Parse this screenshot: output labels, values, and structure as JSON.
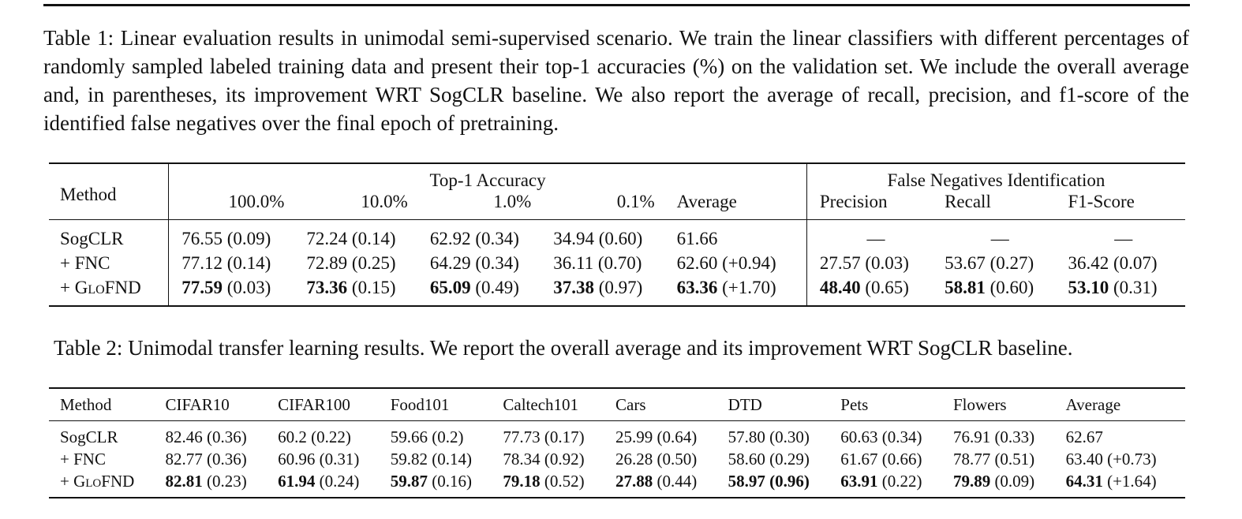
{
  "table1": {
    "caption": "Table 1: Linear evaluation results in unimodal semi-supervised scenario. We train the linear classifiers with different percentages of randomly sampled labeled training data and present their top-1 accuracies (%) on the validation set. We include the overall average and, in parentheses, its improvement WRT SogCLR baseline. We also report the average of recall, precision, and f1-score of the identified false negatives over the final epoch of pretraining.",
    "method_header": "Method",
    "group_top1": "Top-1 Accuracy",
    "group_fn": "False Negatives Identification",
    "columns": [
      "100.0%",
      "10.0%",
      "1.0%",
      "0.1%",
      "Average",
      "Precision",
      "Recall",
      "F1-Score"
    ],
    "rows": [
      {
        "method": "SogCLR",
        "cells": [
          {
            "bold": "",
            "rest": "76.55 (0.09)"
          },
          {
            "bold": "",
            "rest": "72.24 (0.14)"
          },
          {
            "bold": "",
            "rest": "62.92 (0.34)"
          },
          {
            "bold": "",
            "rest": "34.94 (0.60)"
          },
          {
            "bold": "",
            "rest": "61.66"
          },
          {
            "bold": "",
            "rest": "—"
          },
          {
            "bold": "",
            "rest": "—"
          },
          {
            "bold": "",
            "rest": "—"
          }
        ]
      },
      {
        "method": "+ FNC",
        "cells": [
          {
            "bold": "",
            "rest": "77.12 (0.14)"
          },
          {
            "bold": "",
            "rest": "72.89 (0.25)"
          },
          {
            "bold": "",
            "rest": "64.29 (0.34)"
          },
          {
            "bold": "",
            "rest": "36.11 (0.70)"
          },
          {
            "bold": "",
            "rest": "62.60 (+0.94)"
          },
          {
            "bold": "",
            "rest": "27.57 (0.03)"
          },
          {
            "bold": "",
            "rest": "53.67 (0.27)"
          },
          {
            "bold": "",
            "rest": "36.42 (0.07)"
          }
        ]
      },
      {
        "method": "+ GLOFND",
        "cells": [
          {
            "bold": "77.59",
            "rest": " (0.03)"
          },
          {
            "bold": "73.36",
            "rest": " (0.15)"
          },
          {
            "bold": "65.09",
            "rest": " (0.49)"
          },
          {
            "bold": "37.38",
            "rest": " (0.97)"
          },
          {
            "bold": "63.36",
            "rest": " (+1.70)"
          },
          {
            "bold": "48.40",
            "rest": " (0.65)"
          },
          {
            "bold": "58.81",
            "rest": " (0.60)"
          },
          {
            "bold": "53.10",
            "rest": " (0.31)"
          }
        ]
      }
    ]
  },
  "table2": {
    "caption": "Table 2: Unimodal transfer learning results. We report the overall average and its improvement WRT SogCLR baseline.",
    "columns": [
      "Method",
      "CIFAR10",
      "CIFAR100",
      "Food101",
      "Caltech101",
      "Cars",
      "DTD",
      "Pets",
      "Flowers",
      "Average"
    ],
    "rows": [
      {
        "method": "SogCLR",
        "cells": [
          {
            "bold": "",
            "rest": "82.46 (0.36)"
          },
          {
            "bold": "",
            "rest": "60.2 (0.22)"
          },
          {
            "bold": "",
            "rest": "59.66 (0.2)"
          },
          {
            "bold": "",
            "rest": "77.73 (0.17)"
          },
          {
            "bold": "",
            "rest": "25.99 (0.64)"
          },
          {
            "bold": "",
            "rest": "57.80 (0.30)"
          },
          {
            "bold": "",
            "rest": "60.63 (0.34)"
          },
          {
            "bold": "",
            "rest": "76.91 (0.33)"
          },
          {
            "bold": "",
            "rest": "62.67"
          }
        ]
      },
      {
        "method": "+ FNC",
        "cells": [
          {
            "bold": "",
            "rest": "82.77 (0.36)"
          },
          {
            "bold": "",
            "rest": "60.96 (0.31)"
          },
          {
            "bold": "",
            "rest": "59.82 (0.14)"
          },
          {
            "bold": "",
            "rest": "78.34 (0.92)"
          },
          {
            "bold": "",
            "rest": "26.28 (0.50)"
          },
          {
            "bold": "",
            "rest": "58.60 (0.29)"
          },
          {
            "bold": "",
            "rest": "61.67 (0.66)"
          },
          {
            "bold": "",
            "rest": "78.77 (0.51)"
          },
          {
            "bold": "",
            "rest": "63.40 (+0.73)"
          }
        ]
      },
      {
        "method": "+ GLOFND",
        "cells": [
          {
            "bold": "82.81",
            "rest": " (0.23)"
          },
          {
            "bold": "61.94",
            "rest": " (0.24)"
          },
          {
            "bold": "59.87",
            "rest": " (0.16)"
          },
          {
            "bold": "79.18",
            "rest": " (0.52)"
          },
          {
            "bold": "27.88",
            "rest": " (0.44)"
          },
          {
            "bold": "58.97 (0.96)",
            "rest": ""
          },
          {
            "bold": "63.91",
            "rest": " (0.22)"
          },
          {
            "bold": "79.89",
            "rest": " (0.09)"
          },
          {
            "bold": "64.31",
            "rest": " (+1.64)"
          }
        ]
      }
    ]
  }
}
